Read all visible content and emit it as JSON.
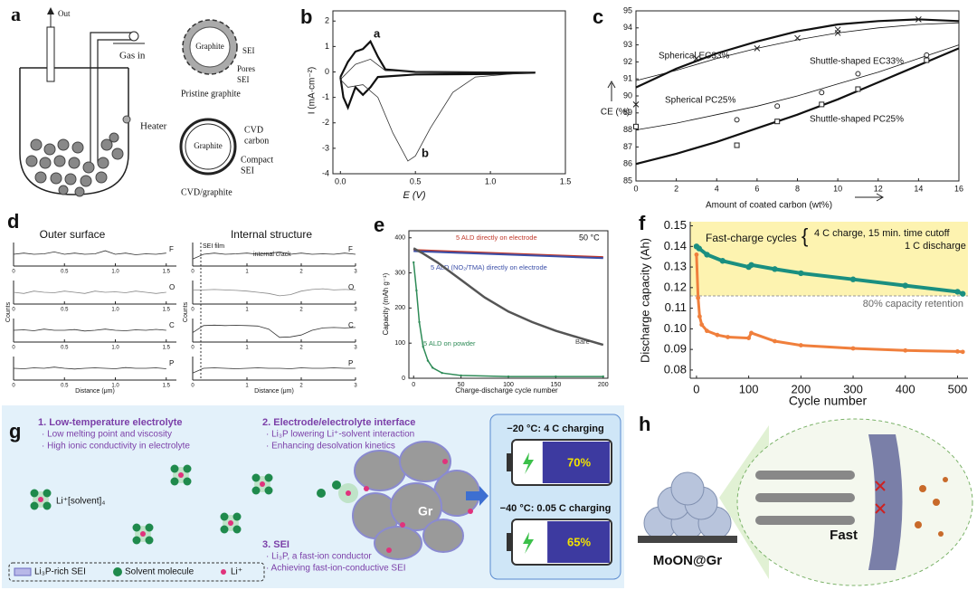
{
  "panel_a": {
    "label": "a",
    "out": "Out",
    "gas_in": "Gas in",
    "heater": "Heater",
    "pristine": {
      "core": "Graphite",
      "sei": "SEI",
      "pores": "Pores",
      "pores_sei": "SEI",
      "caption": "Pristine graphite"
    },
    "cvd": {
      "core": "Graphite",
      "carbon1": "CVD",
      "carbon2": "carbon",
      "compact1": "Compact",
      "compact2": "SEI",
      "caption": "CVD/graphite"
    }
  },
  "panel_d": {
    "label": "d",
    "titles": [
      "Outer surface",
      "Internal structure"
    ],
    "xlabel": "Distance (μm)",
    "ylabel": "Counts",
    "annotations": [
      "SEI film",
      "internal crack"
    ]
  },
  "chart_data": [
    {
      "type": "line",
      "label": "b",
      "xlabel": "E (V)",
      "ylabel": "I (mA·cm⁻²)",
      "xlim": [
        -0.05,
        1.5
      ],
      "ylim": [
        -4,
        2.4
      ],
      "xticks": [
        {
          "value": 0,
          "label": "0.0"
        },
        0.5,
        {
          "value": 1,
          "label": "1.0"
        },
        1.5
      ],
      "yticks": [
        -4,
        -3,
        -2,
        -1,
        0,
        1,
        2
      ],
      "annotations": [
        "a",
        "b"
      ],
      "series": [
        {
          "color": "#111111",
          "width": 2.2,
          "x": [
            0,
            0.05,
            0.1,
            0.15,
            0.2,
            0.25,
            0.3,
            0.5,
            1.0,
            1.3,
            1.0,
            0.5,
            0.25,
            0.2,
            0.15,
            0.1,
            0.05,
            0.02,
            0
          ],
          "values": [
            -0.2,
            0.4,
            0.8,
            0.9,
            1.2,
            0.6,
            0.1,
            0.0,
            -0.02,
            -0.03,
            -0.08,
            -0.1,
            -0.2,
            -0.6,
            -0.9,
            -0.6,
            -1.4,
            -1.0,
            -0.2
          ]
        },
        {
          "color": "#333333",
          "width": 0.8,
          "x": [
            0,
            0.1,
            0.2,
            0.3,
            0.6,
            1.3,
            0.9,
            0.75,
            0.6,
            0.5,
            0.45,
            0.35,
            0.25,
            0.15,
            0.05,
            0
          ],
          "values": [
            -0.3,
            0.3,
            0.5,
            0.05,
            0.0,
            0.0,
            -0.2,
            -0.8,
            -2.2,
            -3.3,
            -3.5,
            -2.4,
            -1.0,
            -0.5,
            -0.6,
            -0.3
          ]
        }
      ]
    },
    {
      "type": "line",
      "label": "c",
      "xlabel": "Amount of coated carbon (wt%)",
      "ylabel": "CE (%)",
      "xlim": [
        0,
        16
      ],
      "ylim": [
        85,
        95
      ],
      "xticks": [
        0,
        2,
        4,
        6,
        8,
        10,
        12,
        14,
        16
      ],
      "yticks": [
        85,
        86,
        87,
        88,
        89,
        90,
        91,
        92,
        93,
        94,
        95
      ],
      "series": [
        {
          "name": "Spherical EC33%",
          "color": "#111111",
          "width": 2.2,
          "marker": "x",
          "x": [
            0,
            2,
            4,
            6,
            8,
            10,
            12,
            14,
            16
          ],
          "values": [
            90.5,
            91.6,
            92.5,
            93.2,
            93.8,
            94.2,
            94.4,
            94.5,
            94.4
          ],
          "points": {
            "x": [
              3,
              6,
              8,
              10,
              14
            ],
            "y": [
              92.2,
              92.8,
              93.4,
              93.7,
              94.5
            ]
          }
        },
        {
          "name": "Shuttle-shaped EC33%",
          "color": "#111111",
          "width": 0.8,
          "marker": "o",
          "x": [
            0,
            2,
            4,
            6,
            8,
            10,
            12,
            14,
            16
          ],
          "values": [
            88.0,
            88.4,
            88.9,
            89.4,
            90.0,
            90.7,
            91.4,
            92.2,
            93.0
          ],
          "points": {
            "x": [
              5,
              7,
              9.2,
              11,
              14.4
            ],
            "y": [
              88.6,
              89.4,
              90.2,
              91.3,
              92.4
            ]
          }
        },
        {
          "name": "Spherical PC25%",
          "color": "#111111",
          "width": 0.8,
          "marker": "x",
          "x": [
            0,
            2,
            4,
            6,
            8,
            10,
            12,
            14,
            16
          ],
          "values": [
            90.9,
            91.5,
            92.2,
            92.8,
            93.3,
            93.7,
            94.0,
            94.2,
            94.3
          ],
          "points": {
            "x": [
              0,
              10
            ],
            "y": [
              89.5,
              93.9
            ]
          }
        },
        {
          "name": "Shuttle-shaped PC25%",
          "color": "#111111",
          "width": 2.2,
          "marker": "s",
          "x": [
            0,
            2,
            4,
            6,
            8,
            10,
            12,
            14,
            16
          ],
          "values": [
            86.0,
            86.6,
            87.3,
            88.1,
            88.9,
            89.8,
            90.8,
            91.8,
            92.8
          ],
          "points": {
            "x": [
              0,
              5,
              7,
              9.2,
              11,
              14.4
            ],
            "y": [
              88.2,
              87.1,
              88.5,
              89.5,
              90.4,
              92.1
            ]
          }
        }
      ]
    },
    {
      "type": "line",
      "element": "F",
      "xlim": [
        0,
        1.6
      ],
      "ylim": [
        0,
        1
      ],
      "xticks": [
        0,
        0.5,
        {
          "value": 1,
          "label": "1.0"
        },
        1.5
      ],
      "series": [
        {
          "x": [
            0,
            0.1,
            0.2,
            0.3,
            0.4,
            0.5,
            0.6,
            0.7,
            0.8,
            0.9,
            1,
            1.1,
            1.2,
            1.3,
            1.4,
            1.5
          ],
          "values": [
            0.5,
            0.55,
            0.5,
            0.52,
            0.6,
            0.5,
            0.55,
            0.5,
            0.52,
            0.65,
            0.5,
            0.55,
            0.48,
            0.52,
            0.5,
            0.55
          ],
          "color": "#333333",
          "width": 0.8
        }
      ]
    },
    {
      "type": "line",
      "element": "O",
      "xlim": [
        0,
        1.6
      ],
      "ylim": [
        0,
        1
      ],
      "xticks": [
        0,
        0.5,
        {
          "value": 1,
          "label": "1.0"
        },
        1.5
      ],
      "series": [
        {
          "x": [
            0,
            0.1,
            0.2,
            0.3,
            0.4,
            0.5,
            0.6,
            0.7,
            0.8,
            0.9,
            1,
            1.1,
            1.2,
            1.3,
            1.4,
            1.5
          ],
          "values": [
            0.5,
            0.45,
            0.55,
            0.5,
            0.48,
            0.55,
            0.5,
            0.45,
            0.55,
            0.5,
            0.52,
            0.48,
            0.55,
            0.5,
            0.45,
            0.5
          ],
          "color": "#888888",
          "width": 0.8
        }
      ]
    },
    {
      "type": "line",
      "element": "C",
      "xlim": [
        0,
        1.6
      ],
      "ylim": [
        0,
        1
      ],
      "xticks": [
        0,
        0.5,
        {
          "value": 1,
          "label": "1.0"
        },
        1.5
      ],
      "series": [
        {
          "x": [
            0,
            0.1,
            0.2,
            0.3,
            0.4,
            0.5,
            0.6,
            0.7,
            0.8,
            0.9,
            1,
            1.1,
            1.2,
            1.3,
            1.4,
            1.5
          ],
          "values": [
            0.5,
            0.52,
            0.48,
            0.55,
            0.5,
            0.5,
            0.53,
            0.47,
            0.5,
            0.55,
            0.5,
            0.48,
            0.52,
            0.5,
            0.54,
            0.5
          ],
          "color": "#333333",
          "width": 0.8
        }
      ]
    },
    {
      "type": "line",
      "element": "P",
      "xlim": [
        0,
        1.6
      ],
      "ylim": [
        0,
        1
      ],
      "xticks": [
        0,
        0.5,
        {
          "value": 1,
          "label": "1.0"
        },
        1.5
      ],
      "series": [
        {
          "x": [
            0,
            0.1,
            0.2,
            0.3,
            0.4,
            0.5,
            0.6,
            0.7,
            0.8,
            0.9,
            1,
            1.1,
            1.2,
            1.3,
            1.4,
            1.5
          ],
          "values": [
            0.5,
            0.48,
            0.52,
            0.5,
            0.55,
            0.5,
            0.47,
            0.5,
            0.52,
            0.5,
            0.48,
            0.53,
            0.5,
            0.5,
            0.52,
            0.48
          ],
          "color": "#333333",
          "width": 0.8
        }
      ]
    },
    {
      "type": "line",
      "element": "F",
      "xlim": [
        0,
        3
      ],
      "ylim": [
        0,
        1
      ],
      "xticks": [
        0,
        1,
        2,
        3
      ],
      "series": [
        {
          "x": [
            0,
            0.2,
            0.4,
            0.6,
            0.8,
            1,
            1.2,
            1.4,
            1.6,
            1.8,
            2,
            2.2,
            2.4,
            2.6,
            2.8,
            3
          ],
          "values": [
            0.3,
            0.5,
            0.55,
            0.5,
            0.52,
            0.55,
            0.5,
            0.53,
            0.6,
            0.5,
            0.55,
            0.5,
            0.52,
            0.5,
            0.55,
            0.5
          ],
          "color": "#333333",
          "width": 0.8
        }
      ]
    },
    {
      "type": "line",
      "element": "O",
      "xlim": [
        0,
        3
      ],
      "ylim": [
        0,
        1
      ],
      "xticks": [
        0,
        1,
        2,
        3
      ],
      "series": [
        {
          "x": [
            0,
            0.2,
            0.4,
            0.6,
            0.8,
            1,
            1.2,
            1.4,
            1.6,
            1.8,
            2,
            2.2,
            2.4,
            2.6,
            2.8,
            3
          ],
          "values": [
            0.6,
            0.6,
            0.62,
            0.6,
            0.58,
            0.55,
            0.5,
            0.45,
            0.35,
            0.4,
            0.55,
            0.62,
            0.65,
            0.6,
            0.62,
            0.6
          ],
          "color": "#888888",
          "width": 0.8
        }
      ]
    },
    {
      "type": "line",
      "element": "C",
      "xlim": [
        0,
        3
      ],
      "ylim": [
        0,
        1
      ],
      "xticks": [
        0,
        1,
        2,
        3
      ],
      "series": [
        {
          "x": [
            0,
            0.2,
            0.4,
            0.6,
            0.8,
            1,
            1.2,
            1.4,
            1.6,
            1.8,
            2,
            2.2,
            2.4,
            2.6,
            2.8,
            3
          ],
          "values": [
            0.4,
            0.7,
            0.72,
            0.7,
            0.71,
            0.7,
            0.68,
            0.55,
            0.2,
            0.22,
            0.3,
            0.5,
            0.6,
            0.62,
            0.6,
            0.62
          ],
          "color": "#333333",
          "width": 0.8
        }
      ]
    },
    {
      "type": "line",
      "element": "P",
      "xlim": [
        0,
        3
      ],
      "ylim": [
        0,
        1
      ],
      "xticks": [
        0,
        1,
        2,
        3
      ],
      "series": [
        {
          "x": [
            0,
            0.2,
            0.4,
            0.6,
            0.8,
            1,
            1.2,
            1.4,
            1.6,
            1.8,
            2,
            2.2,
            2.4,
            2.6,
            2.8,
            3
          ],
          "values": [
            0.3,
            0.5,
            0.52,
            0.5,
            0.48,
            0.5,
            0.52,
            0.5,
            0.5,
            0.48,
            0.52,
            0.5,
            0.5,
            0.52,
            0.5,
            0.5
          ],
          "color": "#333333",
          "width": 0.8
        }
      ]
    },
    {
      "type": "line",
      "label": "e",
      "xlabel": "Charge-discharge cycle number",
      "ylabel": "Capacity (mAh g⁻¹)",
      "xlim": [
        -5,
        205
      ],
      "ylim": [
        0,
        420
      ],
      "xticks": [
        0,
        50,
        100,
        150,
        200
      ],
      "yticks": [
        0,
        100,
        200,
        300,
        400
      ],
      "annotations": [
        "50 °C"
      ],
      "series": [
        {
          "name": "5 ALD directly on electrode",
          "color": "#c0392b",
          "width": 2,
          "x": [
            0,
            50,
            100,
            150,
            200
          ],
          "values": [
            365,
            360,
            355,
            350,
            345
          ]
        },
        {
          "name": "5 ALD (NO₂/TMA) directly on electrode",
          "color": "#3b4fa8",
          "width": 2,
          "x": [
            0,
            50,
            100,
            150,
            200
          ],
          "values": [
            362,
            357,
            352,
            347,
            342
          ]
        },
        {
          "name": "Bare",
          "color": "#555555",
          "width": 2.5,
          "x": [
            0,
            10,
            25,
            50,
            75,
            100,
            125,
            150,
            175,
            200
          ],
          "values": [
            370,
            355,
            330,
            280,
            230,
            190,
            160,
            135,
            115,
            95
          ]
        },
        {
          "name": "5 ALD on powder",
          "color": "#2e8b57",
          "width": 1.5,
          "marker": "dot",
          "x": [
            0,
            3,
            6,
            10,
            15,
            20,
            30,
            50,
            100,
            150,
            200
          ],
          "values": [
            330,
            250,
            160,
            90,
            50,
            30,
            15,
            8,
            5,
            5,
            5
          ]
        }
      ]
    },
    {
      "type": "line",
      "label": "f",
      "xlabel": "Cycle number",
      "ylabel": "Discharge capacity (Ah)",
      "xlim": [
        -12,
        520
      ],
      "ylim": [
        0.076,
        0.152
      ],
      "xticks": [
        0,
        100,
        200,
        300,
        400,
        500
      ],
      "yticks": [
        {
          "value": 0.08,
          "label": "0.08"
        },
        {
          "value": 0.09,
          "label": "0.09"
        },
        {
          "value": 0.1,
          "label": "0.10"
        },
        {
          "value": 0.11,
          "label": "0.11"
        },
        {
          "value": 0.12,
          "label": "0.12"
        },
        {
          "value": 0.13,
          "label": "0.13"
        },
        {
          "value": 0.14,
          "label": "0.14"
        },
        {
          "value": 0.15,
          "label": "0.15"
        }
      ],
      "retention_line": 0.116,
      "retention_label": "80% capacity retention",
      "band_color": "#fdf3b0",
      "annotations": [
        "Fast-charge cycles",
        "{",
        "4 C charge, 15 min. time cutoff",
        "1 C discharge"
      ],
      "series": [
        {
          "color": "#1a8f80",
          "width": 4,
          "marker": "dot",
          "x": [
            0,
            5,
            20,
            50,
            100,
            105,
            150,
            200,
            300,
            400,
            500,
            510
          ],
          "values": [
            0.14,
            0.139,
            0.136,
            0.133,
            0.13,
            0.131,
            0.129,
            0.127,
            0.124,
            0.121,
            0.118,
            0.117
          ]
        },
        {
          "color": "#f07f3c",
          "width": 3,
          "marker": "dot",
          "x": [
            0,
            3,
            6,
            10,
            20,
            40,
            60,
            100,
            105,
            150,
            200,
            300,
            400,
            500,
            510
          ],
          "values": [
            0.136,
            0.115,
            0.106,
            0.102,
            0.099,
            0.097,
            0.096,
            0.0955,
            0.098,
            0.094,
            0.092,
            0.0905,
            0.0895,
            0.089,
            0.0888
          ]
        }
      ]
    }
  ],
  "panel_g": {
    "label": "g",
    "points": [
      {
        "title": "1.  Low-temperature electrolyte",
        "items": [
          "· Low melting point and viscosity",
          "· High ionic conductivity in electrolyte"
        ]
      },
      {
        "title": "2. Electrode/electrolyte interface",
        "items": [
          "· Li₃P lowering Li⁺-solvent interaction",
          "· Enhancing desolvation kinetics"
        ]
      },
      {
        "title": "3. SEI",
        "items": [
          "· Li₃P, a fast-ion conductor",
          "· Achieving fast-ion-conductive SEI"
        ]
      }
    ],
    "solvated": "Li⁺[solvent]₄",
    "particle": "Gr",
    "legend": [
      "Li₃P-rich SEI",
      "Solvent molecule",
      "Li⁺"
    ],
    "batteries": [
      {
        "title": "−20 °C: 4 C charging",
        "value": 70,
        "label": "70%"
      },
      {
        "title": "−40 °C: 0.05 C charging",
        "value": 65,
        "label": "65%"
      }
    ]
  },
  "panel_h": {
    "label": "h",
    "material": "MoON@Gr",
    "arrow": "Fast"
  }
}
